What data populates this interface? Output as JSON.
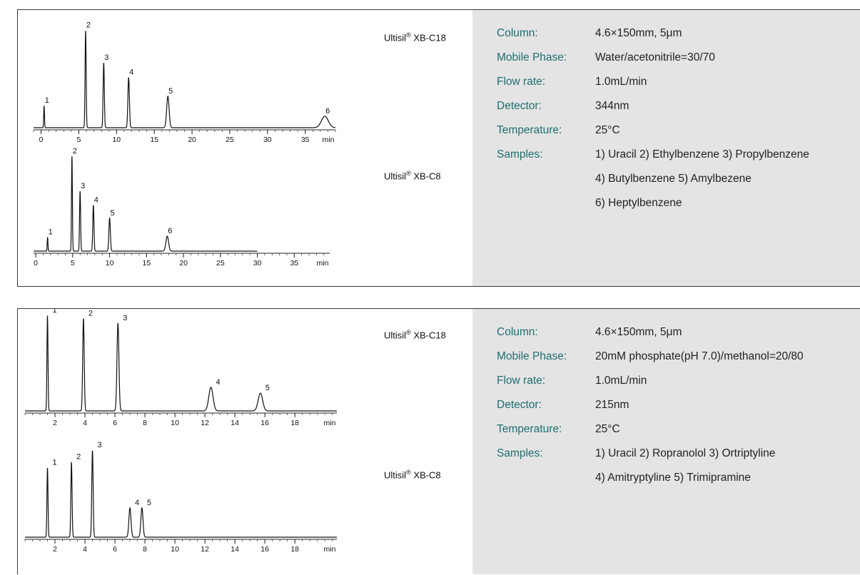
{
  "panels": [
    {
      "id": "top",
      "columns": [
        {
          "label_prefix": "Ultisil",
          "label_mark": "®",
          "label_suffix": " XB-C18"
        },
        {
          "label_prefix": "Ultisil",
          "label_mark": "®",
          "label_suffix": " XB-C8"
        }
      ],
      "conditions": {
        "rows": [
          {
            "key": "Column:",
            "value": "4.6×150mm, 5μm"
          },
          {
            "key": "Mobile Phase:",
            "value": "Water/acetonitrile=30/70"
          },
          {
            "key": "Flow rate:",
            "value": "1.0mL/min"
          },
          {
            "key": "Detector:",
            "value": "344nm"
          },
          {
            "key": "Temperature:",
            "value": "25°C"
          },
          {
            "key": "Samples:",
            "value": "1) Uracil  2) Ethylbenzene  3) Propylbenzene"
          }
        ],
        "continuation": [
          "4) Butylbenzene  5) Amylbezene",
          "6) Heptylbenzene"
        ]
      }
    },
    {
      "id": "bottom",
      "columns": [
        {
          "label_prefix": "Ultisil",
          "label_mark": "®",
          "label_suffix": " XB-C18"
        },
        {
          "label_prefix": "Ultisil",
          "label_mark": "®",
          "label_suffix": " XB-C8"
        }
      ],
      "conditions": {
        "rows": [
          {
            "key": "Column:",
            "value": "4.6×150mm, 5μm"
          },
          {
            "key": "Mobile Phase:",
            "value": "20mM phosphate(pH 7.0)/methanol=20/80"
          },
          {
            "key": "Flow rate:",
            "value": "1.0mL/min"
          },
          {
            "key": "Detector:",
            "value": "215nm"
          },
          {
            "key": "Temperature:",
            "value": "25°C"
          },
          {
            "key": "Samples:",
            "value": "1) Uracil  2) Ropranolol  3) Ortriptyline"
          }
        ],
        "continuation": [
          "4) Amitryptyline  5) Trimipramine"
        ]
      }
    }
  ],
  "chart_data": [
    {
      "type": "line",
      "panel": "top",
      "column": "Ultisil® XB-C18",
      "x_unit": "min",
      "x_ticks": [
        0,
        5,
        10,
        15,
        20,
        25,
        30,
        35
      ],
      "xlim": [
        -1,
        39
      ],
      "ylim": [
        0,
        1
      ],
      "peaks": [
        {
          "label": "1",
          "t": 0.4,
          "height": 0.21,
          "width": 0.05
        },
        {
          "label": "2",
          "t": 5.9,
          "height": 0.93,
          "width": 0.07
        },
        {
          "label": "3",
          "t": 8.3,
          "height": 0.62,
          "width": 0.08
        },
        {
          "label": "4",
          "t": 11.6,
          "height": 0.48,
          "width": 0.1
        },
        {
          "label": "5",
          "t": 16.8,
          "height": 0.3,
          "width": 0.16
        },
        {
          "label": "6",
          "t": 37.6,
          "height": 0.11,
          "width": 0.45
        }
      ]
    },
    {
      "type": "line",
      "panel": "top",
      "column": "Ultisil® XB-C8",
      "x_unit": "min",
      "x_ticks": [
        0,
        5,
        10,
        15,
        20,
        25,
        30,
        35
      ],
      "xlim": [
        -0.3,
        39.8
      ],
      "ylim": [
        0,
        1
      ],
      "peaks": [
        {
          "label": "1",
          "t": 1.6,
          "height": 0.14,
          "width": 0.05
        },
        {
          "label": "2",
          "t": 4.9,
          "height": 0.95,
          "width": 0.06
        },
        {
          "label": "3",
          "t": 6.0,
          "height": 0.6,
          "width": 0.07
        },
        {
          "label": "4",
          "t": 7.8,
          "height": 0.46,
          "width": 0.08
        },
        {
          "label": "5",
          "t": 10.0,
          "height": 0.33,
          "width": 0.1
        },
        {
          "label": "6",
          "t": 17.8,
          "height": 0.15,
          "width": 0.18
        }
      ]
    },
    {
      "type": "line",
      "panel": "bottom",
      "column": "Ultisil® XB-C18",
      "x_unit": "min",
      "x_ticks": [
        2,
        4,
        6,
        8,
        10,
        12,
        14,
        16,
        18
      ],
      "xlim": [
        0,
        20.8
      ],
      "ylim": [
        0,
        1
      ],
      "peaks": [
        {
          "label": "1",
          "t": 1.5,
          "height": 0.97,
          "width": 0.035
        },
        {
          "label": "2",
          "t": 3.9,
          "height": 0.94,
          "width": 0.05
        },
        {
          "label": "3",
          "t": 6.2,
          "height": 0.89,
          "width": 0.065
        },
        {
          "label": "4",
          "t": 12.4,
          "height": 0.24,
          "width": 0.14
        },
        {
          "label": "5",
          "t": 15.7,
          "height": 0.18,
          "width": 0.15
        }
      ]
    },
    {
      "type": "line",
      "panel": "bottom",
      "column": "Ultisil® XB-C8",
      "x_unit": "min",
      "x_ticks": [
        2,
        4,
        6,
        8,
        10,
        12,
        14,
        16,
        18
      ],
      "xlim": [
        0,
        20.8
      ],
      "ylim": [
        0,
        1
      ],
      "peaks": [
        {
          "label": "1",
          "t": 1.5,
          "height": 0.71,
          "width": 0.035
        },
        {
          "label": "2",
          "t": 3.1,
          "height": 0.77,
          "width": 0.04
        },
        {
          "label": "3",
          "t": 4.5,
          "height": 0.89,
          "width": 0.045
        },
        {
          "label": "4",
          "t": 7.0,
          "height": 0.3,
          "width": 0.07
        },
        {
          "label": "5",
          "t": 7.8,
          "height": 0.3,
          "width": 0.07
        }
      ]
    }
  ]
}
